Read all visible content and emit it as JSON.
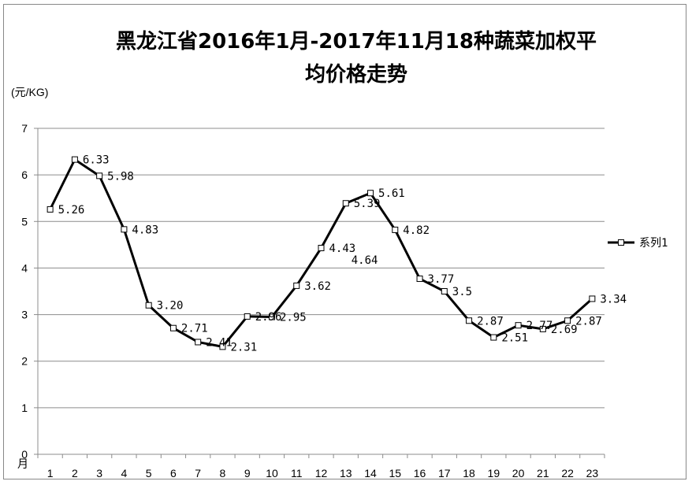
{
  "chart_data": {
    "type": "line",
    "title_line1": "黑龙江省2016年1月-2017年11月18种蔬菜加权平",
    "title_line2": "均价格走势",
    "ylabel": "(元/KG)",
    "xlabel": "月",
    "ylim": [
      0,
      7
    ],
    "yticks": [
      0,
      1,
      2,
      3,
      4,
      5,
      6,
      7
    ],
    "categories": [
      "1",
      "2",
      "3",
      "4",
      "5",
      "6",
      "7",
      "8",
      "9",
      "10",
      "11",
      "12",
      "13",
      "14",
      "15",
      "16",
      "17",
      "18",
      "19",
      "20",
      "21",
      "22",
      "23"
    ],
    "series": [
      {
        "name": "系列1",
        "values": [
          5.26,
          6.33,
          5.98,
          4.83,
          3.2,
          2.71,
          2.41,
          2.31,
          2.96,
          2.95,
          3.62,
          4.43,
          5.39,
          5.61,
          4.82,
          3.77,
          3.5,
          2.87,
          2.51,
          2.77,
          2.69,
          2.87,
          3.34
        ],
        "labels": [
          "5.26",
          "6.33",
          "5.98",
          "4.83",
          "3.20",
          "2.71",
          "2.41",
          "2.31",
          "2.96",
          "2.95",
          "3.62",
          "4.43",
          "5.39",
          "5.61",
          "4.82",
          "3.77",
          "3.5",
          "2.87",
          "2.51",
          "2.77",
          "2.69",
          "2.87",
          "3.34"
        ]
      }
    ],
    "extra_label": "4.64",
    "grid": true,
    "legend_position": "right",
    "line_color": "#000000",
    "marker": "square-hollow"
  }
}
